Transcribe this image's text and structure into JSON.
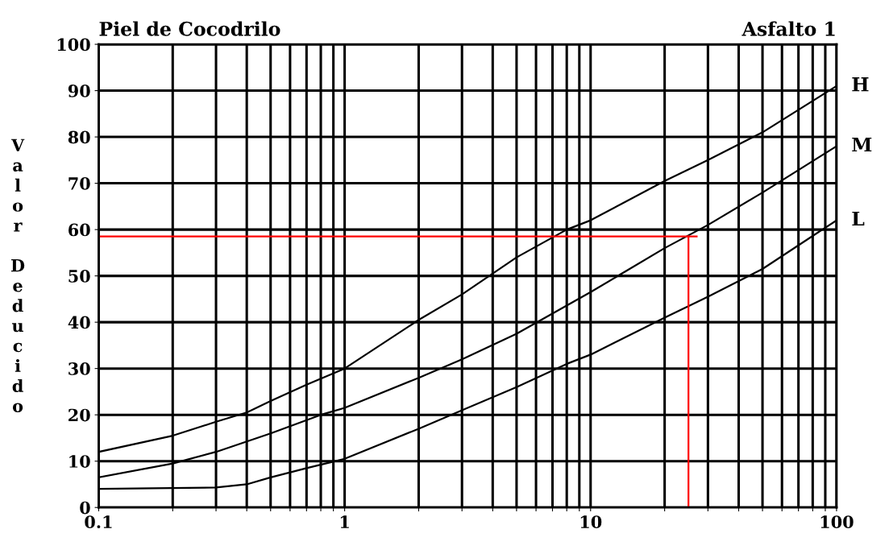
{
  "chart_data": {
    "type": "line",
    "title": "Piel de Cocodrilo",
    "annotations": [
      "Asfalto 1"
    ],
    "ylabel": "Valor Deducido",
    "log": "x",
    "grid": true,
    "xlim": [
      0.1,
      100
    ],
    "ylim": [
      0,
      100
    ],
    "yticks": [
      0,
      10,
      20,
      30,
      40,
      50,
      60,
      70,
      80,
      90,
      100
    ],
    "xticks": [
      0.1,
      {
        "value": 0.2,
        "label": null
      },
      {
        "value": 0.3,
        "label": null
      },
      {
        "value": 0.4,
        "label": null
      },
      {
        "value": 0.5,
        "label": null
      },
      {
        "value": 0.6,
        "label": null
      },
      {
        "value": 0.7,
        "label": null
      },
      {
        "value": 0.8,
        "label": null
      },
      {
        "value": 0.9,
        "label": null
      },
      1,
      {
        "value": 2,
        "label": null
      },
      {
        "value": 3,
        "label": null
      },
      {
        "value": 4,
        "label": null
      },
      {
        "value": 5,
        "label": null
      },
      {
        "value": 6,
        "label": null
      },
      {
        "value": 7,
        "label": null
      },
      {
        "value": 8,
        "label": null
      },
      {
        "value": 9,
        "label": null
      },
      10,
      {
        "value": 20,
        "label": null
      },
      {
        "value": 30,
        "label": null
      },
      {
        "value": 40,
        "label": null
      },
      {
        "value": 50,
        "label": null
      },
      {
        "value": 60,
        "label": null
      },
      {
        "value": 70,
        "label": null
      },
      {
        "value": 80,
        "label": null
      },
      {
        "value": 90,
        "label": null
      },
      100
    ],
    "series": [
      {
        "name": "H",
        "color": "#000000",
        "x": [
          0.1,
          0.2,
          0.3,
          0.4,
          0.5,
          0.7,
          1,
          2,
          3,
          5,
          8,
          10,
          20,
          30,
          50,
          100
        ],
        "values": [
          12,
          15.5,
          18.5,
          20.5,
          23,
          26.5,
          30,
          40.5,
          46,
          54,
          60,
          62,
          70.5,
          75,
          81,
          91
        ]
      },
      {
        "name": "M",
        "color": "#000000",
        "x": [
          0.1,
          0.2,
          0.3,
          0.5,
          0.8,
          1,
          2,
          3,
          5,
          10,
          20,
          30,
          50,
          100
        ],
        "values": [
          6.5,
          9.5,
          12,
          16,
          20,
          21.5,
          28,
          32,
          37.5,
          46.5,
          56,
          61,
          68,
          78
        ]
      },
      {
        "name": "L",
        "color": "#000000",
        "x": [
          0.1,
          0.3,
          0.4,
          0.5,
          0.7,
          1,
          2,
          3,
          5,
          8,
          10,
          20,
          30,
          50,
          100
        ],
        "values": [
          4,
          4.3,
          5,
          6.5,
          8.5,
          10.5,
          17,
          21,
          26,
          31,
          33,
          41,
          45.5,
          51.5,
          62
        ]
      },
      {
        "color": "#ff0000",
        "x": [
          0.1,
          27
        ],
        "values": [
          58.5,
          58.5
        ]
      },
      {
        "color": "#ff0000",
        "x": [
          25,
          25
        ],
        "values": [
          58.5,
          0
        ]
      }
    ]
  }
}
